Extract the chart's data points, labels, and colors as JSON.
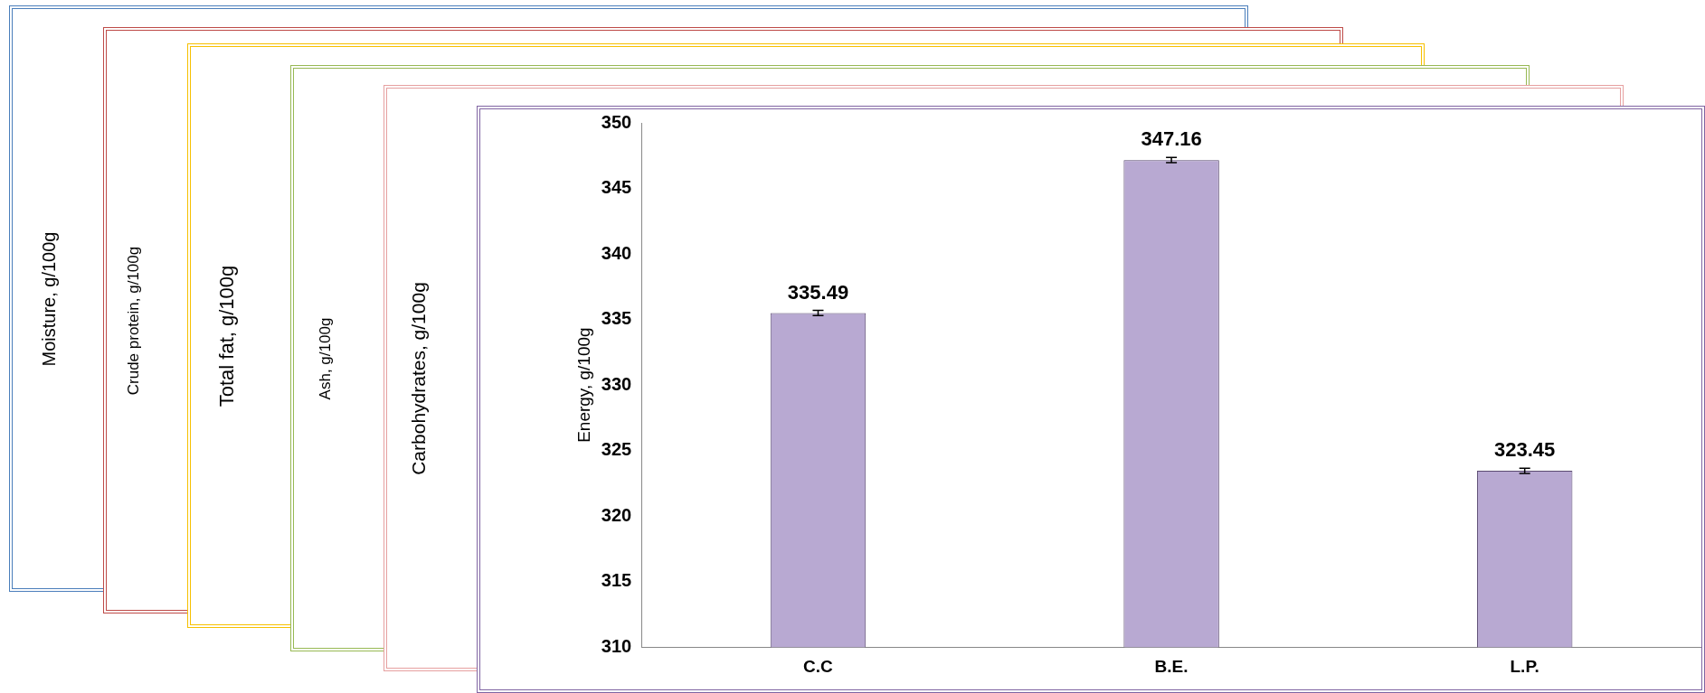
{
  "chart_data": [
    {
      "type": "other",
      "ylabel": "Moisture, g/100g"
    },
    {
      "type": "other",
      "ylabel": "Crude protein, g/100g"
    },
    {
      "type": "other",
      "ylabel": "Total fat, g/100g"
    },
    {
      "type": "other",
      "ylabel": "Ash, g/100g"
    },
    {
      "type": "other",
      "ylabel": "Carbohydrates, g/100g"
    },
    {
      "type": "bar",
      "ylabel": "Energy, g/100g",
      "categories": [
        "C.C",
        "B.E.",
        "L.P."
      ],
      "values": [
        335.49,
        347.16,
        323.45
      ],
      "errors": [
        0.2,
        0.2,
        0.2
      ],
      "color": "#b8a9d2",
      "ylim": [
        310,
        350
      ],
      "yticks": [
        310,
        315,
        320,
        325,
        330,
        335,
        340,
        345,
        350
      ],
      "data_labels": true
    }
  ]
}
